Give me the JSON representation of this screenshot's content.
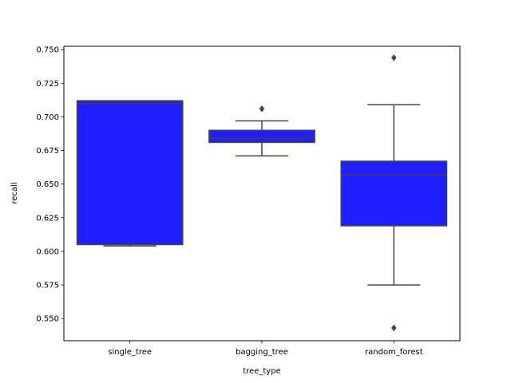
{
  "chart_data": {
    "type": "box",
    "xlabel": "tree_type",
    "ylabel": "recall",
    "ylim": [
      0.5335,
      0.7525
    ],
    "yticks": [
      0.55,
      0.575,
      0.6,
      0.625,
      0.65,
      0.675,
      0.7,
      0.725,
      0.75
    ],
    "ytick_labels": [
      "0.550",
      "0.575",
      "0.600",
      "0.625",
      "0.650",
      "0.675",
      "0.700",
      "0.725",
      "0.750"
    ],
    "categories": [
      "single_tree",
      "bagging_tree",
      "random_forest"
    ],
    "box_color": "#0000ff",
    "line_color": "#444444",
    "grid": false,
    "boxes": [
      {
        "category": "single_tree",
        "whisker_low": 0.604,
        "q1": 0.605,
        "median": 0.71,
        "q3": 0.712,
        "whisker_high": 0.712,
        "outliers": []
      },
      {
        "category": "bagging_tree",
        "whisker_low": 0.671,
        "q1": 0.681,
        "median": 0.684,
        "q3": 0.69,
        "whisker_high": 0.697,
        "outliers": [
          0.706
        ]
      },
      {
        "category": "random_forest",
        "whisker_low": 0.575,
        "q1": 0.619,
        "median": 0.657,
        "q3": 0.667,
        "whisker_high": 0.709,
        "outliers": [
          0.744,
          0.543
        ]
      }
    ]
  }
}
